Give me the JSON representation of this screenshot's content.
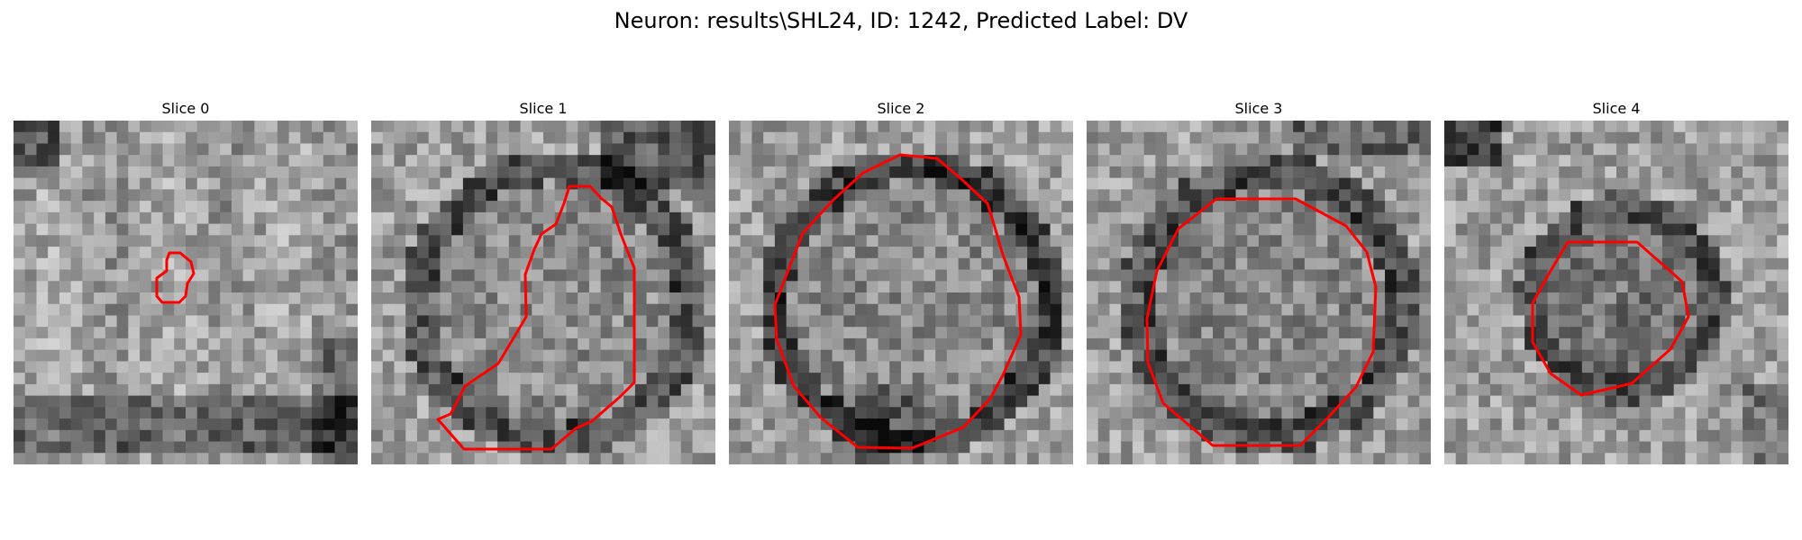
{
  "figure": {
    "title": "Neuron: results\\SHL24, ID: 1242, Predicted Label: DV",
    "contour_color": "#ff0000"
  },
  "panels": [
    {
      "title": "Slice 0",
      "image": "grayscale-microscopy-tile",
      "contour": "small-irregular-red-outline"
    },
    {
      "title": "Slice 1",
      "image": "grayscale-microscopy-tile",
      "contour": "stepped-red-outline-right-half"
    },
    {
      "title": "Slice 2",
      "image": "grayscale-microscopy-tile",
      "contour": "large-round-red-outline"
    },
    {
      "title": "Slice 3",
      "image": "grayscale-microscopy-tile",
      "contour": "octagonal-red-outline"
    },
    {
      "title": "Slice 4",
      "image": "grayscale-microscopy-tile",
      "contour": "small-octagonal-red-outline"
    }
  ]
}
